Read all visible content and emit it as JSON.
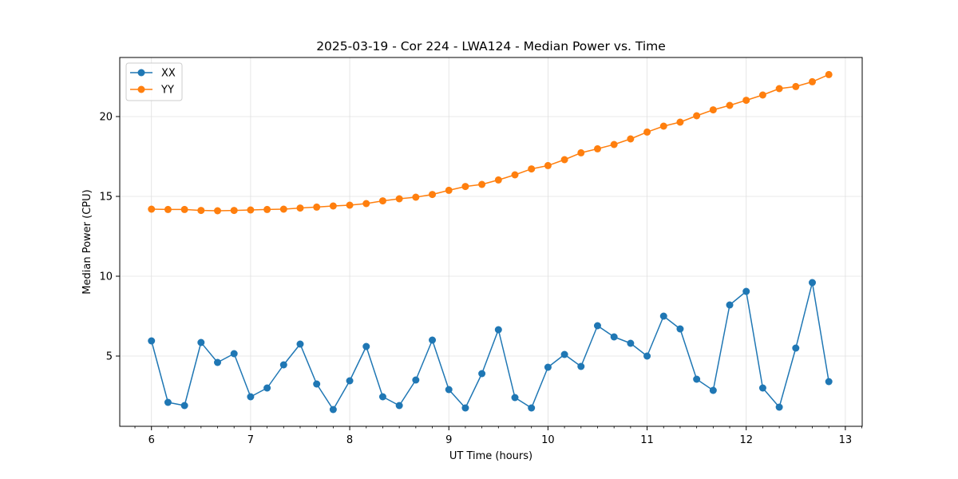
{
  "chart_data": {
    "type": "line",
    "title": "2025-03-19 - Cor 224 - LWA124 - Median Power vs. Time",
    "xlabel": "UT Time (hours)",
    "ylabel": "Median Power (CPU)",
    "xlim": [
      5.68,
      13.17
    ],
    "ylim": [
      0.6,
      23.7
    ],
    "xticks": [
      6,
      7,
      8,
      9,
      10,
      11,
      12,
      13
    ],
    "yticks": [
      5,
      10,
      15,
      20
    ],
    "grid": true,
    "legend_position": "top-left",
    "x": [
      6.0,
      6.1667,
      6.3333,
      6.5,
      6.6667,
      6.8333,
      7.0,
      7.1667,
      7.3333,
      7.5,
      7.6667,
      7.8333,
      8.0,
      8.1667,
      8.3333,
      8.5,
      8.6667,
      8.8333,
      9.0,
      9.1667,
      9.3333,
      9.5,
      9.6667,
      9.8333,
      10.0,
      10.1667,
      10.3333,
      10.5,
      10.6667,
      10.8333,
      11.0,
      11.1667,
      11.3333,
      11.5,
      11.6667,
      11.8333,
      12.0,
      12.1667,
      12.3333,
      12.5,
      12.6667,
      12.8333
    ],
    "series": [
      {
        "name": "XX",
        "color": "#1f77b4",
        "values": [
          5.95,
          2.1,
          1.9,
          5.85,
          4.6,
          5.15,
          2.45,
          3.0,
          4.45,
          5.75,
          3.25,
          1.65,
          3.45,
          5.6,
          2.45,
          1.9,
          3.5,
          6.0,
          2.9,
          1.75,
          3.9,
          6.65,
          2.4,
          1.75,
          4.3,
          5.1,
          4.35,
          6.9,
          6.2,
          5.8,
          5.0,
          7.5,
          6.7,
          3.55,
          2.85,
          8.2,
          9.05,
          3.0,
          1.8,
          5.5,
          9.6,
          3.4
        ]
      },
      {
        "name": "YY",
        "color": "#ff7f0e",
        "values": [
          14.2,
          14.18,
          14.18,
          14.12,
          14.1,
          14.12,
          14.15,
          14.18,
          14.2,
          14.27,
          14.33,
          14.4,
          14.45,
          14.55,
          14.72,
          14.85,
          14.95,
          15.12,
          15.38,
          15.62,
          15.75,
          16.03,
          16.35,
          16.72,
          16.93,
          17.3,
          17.73,
          17.98,
          18.25,
          18.6,
          19.03,
          19.4,
          19.65,
          20.05,
          20.42,
          20.7,
          21.02,
          21.35,
          21.75,
          21.88,
          22.18,
          22.63
        ]
      }
    ]
  }
}
